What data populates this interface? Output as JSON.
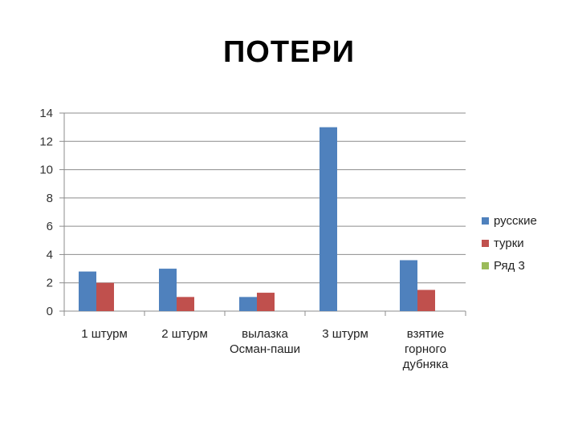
{
  "slide": {
    "title": "ПОТЕРИ"
  },
  "chart_data": {
    "type": "bar",
    "categories": [
      [
        "1 штурм"
      ],
      [
        "2 штурм"
      ],
      [
        "вылазка",
        "Осман-паши"
      ],
      [
        "3 штурм"
      ],
      [
        "взятие",
        "горного",
        "дубняка"
      ]
    ],
    "series": [
      {
        "name": "русские",
        "color": "#4F81BD",
        "values": [
          2.8,
          3,
          1,
          13,
          3.6
        ]
      },
      {
        "name": "турки",
        "color": "#C0504D",
        "values": [
          2,
          1,
          1.3,
          null,
          1.5
        ]
      },
      {
        "name": "Ряд 3",
        "color": "#9BBB59",
        "values": [
          null,
          null,
          null,
          null,
          null
        ]
      }
    ],
    "ylim": [
      0,
      14
    ],
    "yticks": [
      0,
      2,
      4,
      6,
      8,
      10,
      12,
      14
    ],
    "grid": true,
    "legend": "right"
  }
}
